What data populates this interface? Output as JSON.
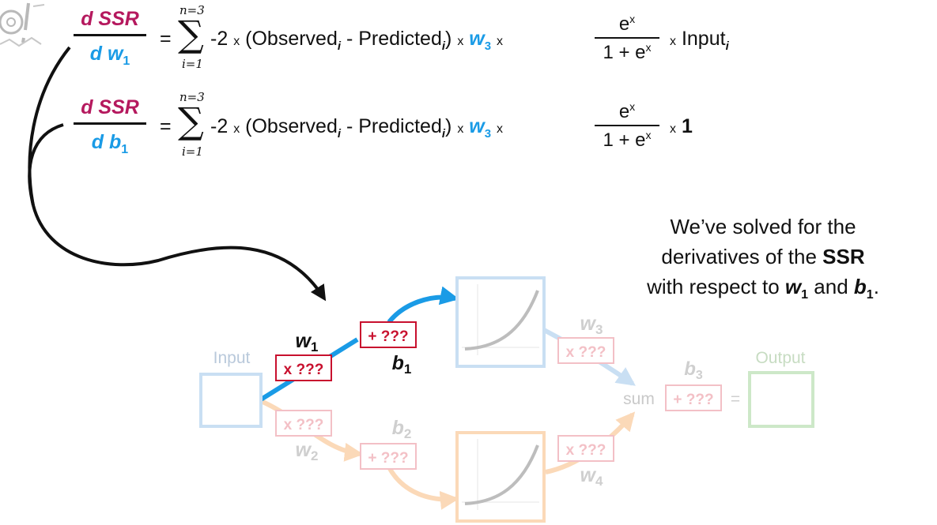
{
  "equations": {
    "eq1": {
      "lhs_num": "d SSR",
      "lhs_den_d": "d",
      "lhs_den_var": "w",
      "lhs_den_sub": "1",
      "equals": "=",
      "sum_top": "n=3",
      "sum_bottom": "i=1",
      "sigma": "∑",
      "term_a": "-2",
      "times": "x",
      "observed": "(Observed",
      "sub_i": "i",
      "minus_predicted": " - Predicted",
      "close": ")",
      "w3": "w",
      "w3_sub": "3",
      "e_base": "e",
      "e_exp": "x",
      "denom": "1 + e",
      "tail": "Input",
      "tail_sub": "i"
    },
    "eq2": {
      "lhs_num": "d SSR",
      "lhs_den_d": "d",
      "lhs_den_var": "b",
      "lhs_den_sub": "1",
      "tail": "1"
    }
  },
  "note": {
    "line1": "We’ve solved for the",
    "line2a": "derivatives of the ",
    "line2b": "SSR",
    "line3a": "with respect to ",
    "w1": "w",
    "w1_sub": "1",
    "and": " and ",
    "b1": "b",
    "b1_sub": "1",
    "end": "."
  },
  "network": {
    "input_label": "Input",
    "output_label": "Output",
    "sum_label": "sum",
    "equals": "=",
    "w1": "w",
    "w1_sub": "1",
    "w1_box": "x ???",
    "b1": "b",
    "b1_sub": "1",
    "b1_box": "+ ???",
    "w2": "w",
    "w2_sub": "2",
    "w2_box": "x ???",
    "b2": "b",
    "b2_sub": "2",
    "b2_box": "+ ???",
    "w3": "w",
    "w3_sub": "3",
    "w3_box": "x ???",
    "w4": "w",
    "w4_sub": "4",
    "w4_box": "x ???",
    "b3": "b",
    "b3_sub": "3",
    "b3_box": "+ ???"
  },
  "colors": {
    "magenta": "#b5195e",
    "blue": "#1a9be6",
    "red": "#c8102e",
    "faded_blue": "#c9dff3",
    "faded_orange": "#fbd9b8",
    "faded_green": "#cde8c8",
    "faded_red": "#f3c0c6"
  }
}
